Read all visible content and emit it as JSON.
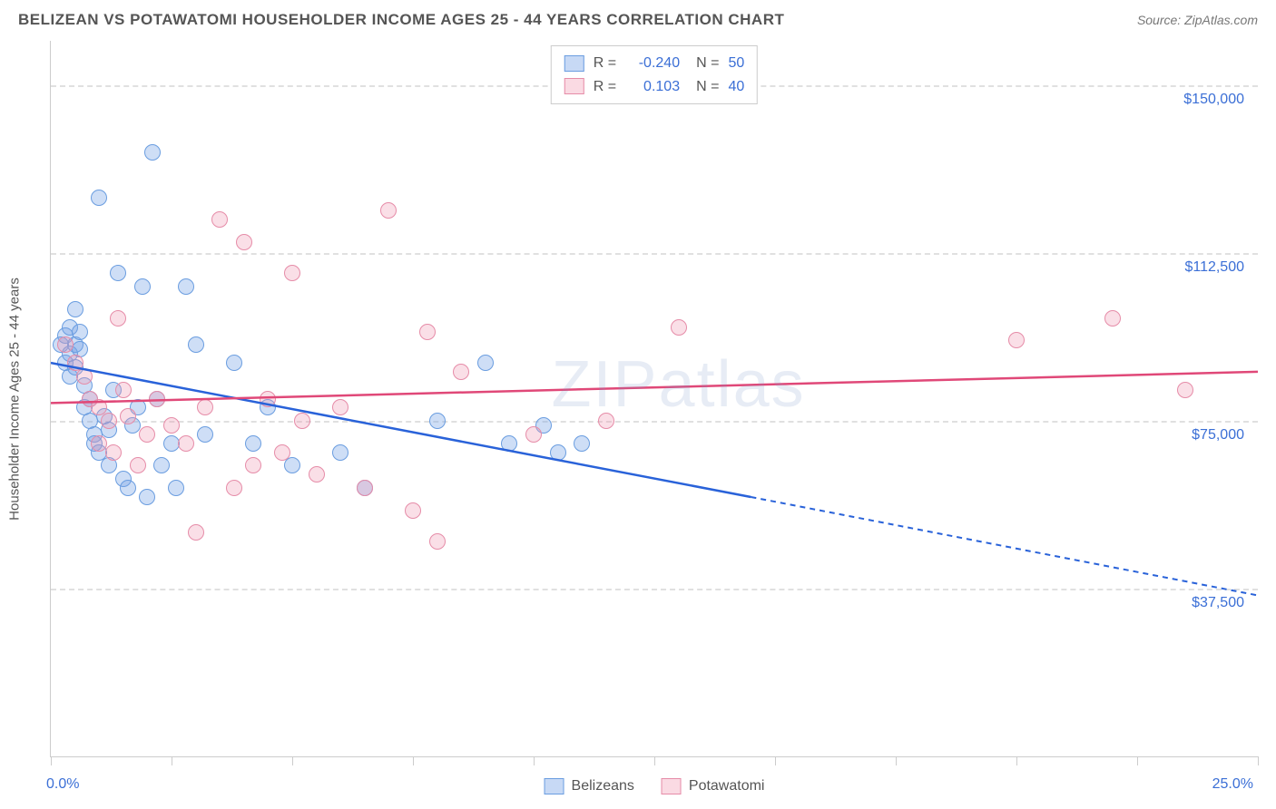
{
  "title": "BELIZEAN VS POTAWATOMI HOUSEHOLDER INCOME AGES 25 - 44 YEARS CORRELATION CHART",
  "source": "Source: ZipAtlas.com",
  "watermark": "ZIPatlas",
  "yaxis_title": "Householder Income Ages 25 - 44 years",
  "chart": {
    "type": "scatter",
    "xlim": [
      0,
      25
    ],
    "ylim": [
      0,
      160000
    ],
    "xtick_label_min": "0.0%",
    "xtick_label_max": "25.0%",
    "xticks": [
      0,
      2.5,
      5,
      7.5,
      10,
      12.5,
      15,
      17.5,
      20,
      22.5,
      25
    ],
    "yticks": [
      {
        "v": 37500,
        "label": "$37,500"
      },
      {
        "v": 75000,
        "label": "$75,000"
      },
      {
        "v": 112500,
        "label": "$112,500"
      },
      {
        "v": 150000,
        "label": "$150,000"
      }
    ],
    "grid_color": "#e0e0e0",
    "background_color": "#ffffff",
    "series": [
      {
        "name": "Belizeans",
        "fill": "rgba(115,160,230,0.35)",
        "stroke": "#6a9de0",
        "trend_color": "#2962d9",
        "R": "-0.240",
        "N": "50",
        "trend": {
          "x1": 0,
          "y1": 88000,
          "x2": 14.5,
          "y2": 58000,
          "x2_dash": 25,
          "y2_dash": 36000
        },
        "points": [
          [
            0.2,
            92000
          ],
          [
            0.3,
            88000
          ],
          [
            0.3,
            94000
          ],
          [
            0.4,
            90000
          ],
          [
            0.4,
            85000
          ],
          [
            0.4,
            96000
          ],
          [
            0.5,
            92000
          ],
          [
            0.5,
            87000
          ],
          [
            0.5,
            100000
          ],
          [
            0.6,
            95000
          ],
          [
            0.6,
            91000
          ],
          [
            0.7,
            83000
          ],
          [
            0.7,
            78000
          ],
          [
            0.8,
            80000
          ],
          [
            0.8,
            75000
          ],
          [
            0.9,
            72000
          ],
          [
            0.9,
            70000
          ],
          [
            1.0,
            68000
          ],
          [
            1.0,
            125000
          ],
          [
            1.1,
            76000
          ],
          [
            1.2,
            73000
          ],
          [
            1.2,
            65000
          ],
          [
            1.3,
            82000
          ],
          [
            1.4,
            108000
          ],
          [
            1.5,
            62000
          ],
          [
            1.6,
            60000
          ],
          [
            1.7,
            74000
          ],
          [
            1.8,
            78000
          ],
          [
            1.9,
            105000
          ],
          [
            2.0,
            58000
          ],
          [
            2.1,
            135000
          ],
          [
            2.2,
            80000
          ],
          [
            2.3,
            65000
          ],
          [
            2.5,
            70000
          ],
          [
            2.6,
            60000
          ],
          [
            2.8,
            105000
          ],
          [
            3.0,
            92000
          ],
          [
            3.2,
            72000
          ],
          [
            3.8,
            88000
          ],
          [
            4.2,
            70000
          ],
          [
            4.5,
            78000
          ],
          [
            5.0,
            65000
          ],
          [
            6.0,
            68000
          ],
          [
            6.5,
            60000
          ],
          [
            8.0,
            75000
          ],
          [
            9.0,
            88000
          ],
          [
            9.5,
            70000
          ],
          [
            10.2,
            74000
          ],
          [
            10.5,
            68000
          ],
          [
            11.0,
            70000
          ]
        ]
      },
      {
        "name": "Potawatomi",
        "fill": "rgba(240,150,175,0.3)",
        "stroke": "#e68ca8",
        "trend_color": "#e04878",
        "R": "0.103",
        "N": "40",
        "trend": {
          "x1": 0,
          "y1": 79000,
          "x2": 25,
          "y2": 86000
        },
        "points": [
          [
            0.3,
            92000
          ],
          [
            0.5,
            88000
          ],
          [
            0.7,
            85000
          ],
          [
            0.8,
            80000
          ],
          [
            1.0,
            78000
          ],
          [
            1.0,
            70000
          ],
          [
            1.2,
            75000
          ],
          [
            1.3,
            68000
          ],
          [
            1.4,
            98000
          ],
          [
            1.5,
            82000
          ],
          [
            1.6,
            76000
          ],
          [
            1.8,
            65000
          ],
          [
            2.0,
            72000
          ],
          [
            2.2,
            80000
          ],
          [
            2.5,
            74000
          ],
          [
            2.8,
            70000
          ],
          [
            3.0,
            50000
          ],
          [
            3.2,
            78000
          ],
          [
            3.5,
            120000
          ],
          [
            3.8,
            60000
          ],
          [
            4.0,
            115000
          ],
          [
            4.2,
            65000
          ],
          [
            4.5,
            80000
          ],
          [
            4.8,
            68000
          ],
          [
            5.0,
            108000
          ],
          [
            5.2,
            75000
          ],
          [
            5.5,
            63000
          ],
          [
            6.0,
            78000
          ],
          [
            6.5,
            60000
          ],
          [
            7.0,
            122000
          ],
          [
            7.5,
            55000
          ],
          [
            7.8,
            95000
          ],
          [
            8.0,
            48000
          ],
          [
            8.5,
            86000
          ],
          [
            10.0,
            72000
          ],
          [
            11.5,
            75000
          ],
          [
            13.0,
            96000
          ],
          [
            20.0,
            93000
          ],
          [
            22.0,
            98000
          ],
          [
            23.5,
            82000
          ]
        ]
      }
    ]
  },
  "legend_bottom": [
    {
      "name": "Belizeans"
    },
    {
      "name": "Potawatomi"
    }
  ]
}
